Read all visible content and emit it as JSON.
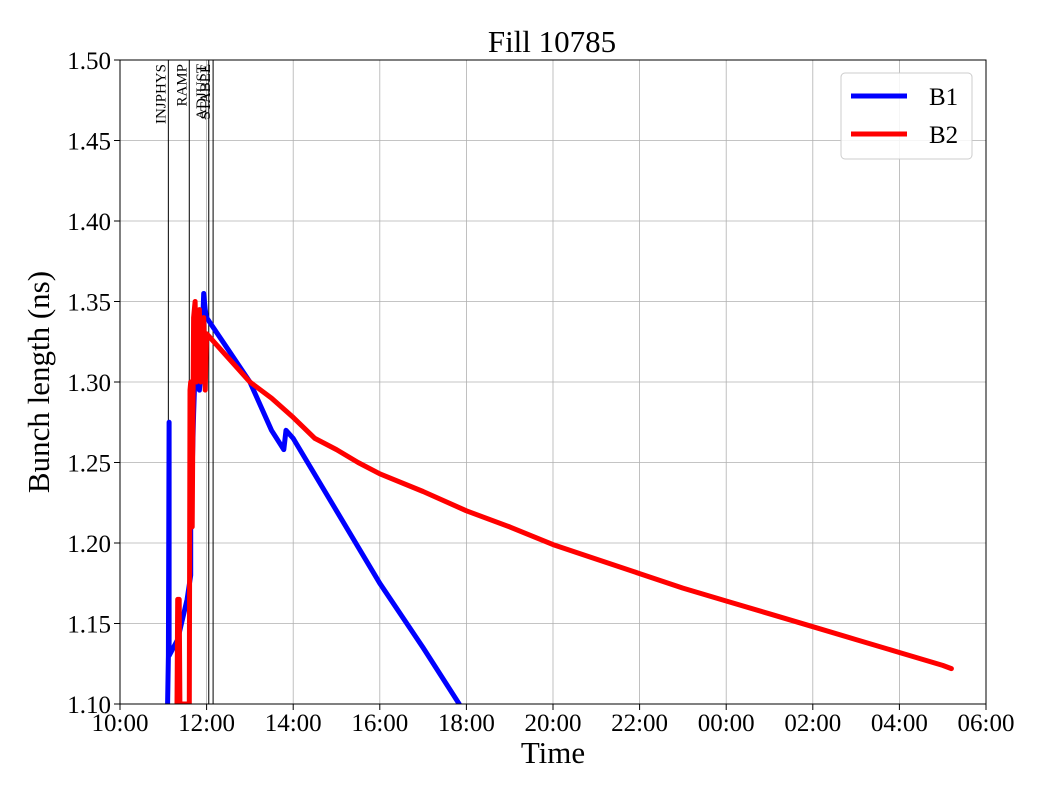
{
  "chart_data": {
    "type": "line",
    "title": "Fill 10785",
    "xlabel": "Time",
    "ylabel": "Bunch length (ns)",
    "x_ticks": [
      "10:00",
      "12:00",
      "14:00",
      "16:00",
      "18:00",
      "20:00",
      "22:00",
      "00:00",
      "02:00",
      "04:00",
      "06:00"
    ],
    "y_ticks": [
      "1.10",
      "1.15",
      "1.20",
      "1.25",
      "1.30",
      "1.35",
      "1.40",
      "1.45",
      "1.50"
    ],
    "xlim": [
      "10:00",
      "06:00 (+1 day)"
    ],
    "ylim": [
      1.1,
      1.5
    ],
    "grid": true,
    "legend_position": "top-right",
    "phases": [
      {
        "label": "INJPHYS",
        "time": "11:07"
      },
      {
        "label": "RAMP",
        "time": "11:36"
      },
      {
        "label": "ADJUST",
        "time": "12:03"
      },
      {
        "label": "STABLE",
        "time": "12:09"
      }
    ],
    "series": [
      {
        "name": "B1",
        "color": "#0000ff",
        "points": [
          [
            "11:06",
            1.1
          ],
          [
            "11:07",
            1.13
          ],
          [
            "11:08",
            1.275
          ],
          [
            "11:08",
            1.13
          ],
          [
            "11:20",
            1.14
          ],
          [
            "11:33",
            1.165
          ],
          [
            "11:38",
            1.18
          ],
          [
            "11:38",
            1.21
          ],
          [
            "11:42",
            1.28
          ],
          [
            "11:45",
            1.32
          ],
          [
            "11:48",
            1.31
          ],
          [
            "11:50",
            1.295
          ],
          [
            "11:52",
            1.305
          ],
          [
            "11:54",
            1.33
          ],
          [
            "11:56",
            1.355
          ],
          [
            "11:58",
            1.345
          ],
          [
            "12:00",
            1.34
          ],
          [
            "12:30",
            1.32
          ],
          [
            "13:00",
            1.3
          ],
          [
            "13:30",
            1.27
          ],
          [
            "13:47",
            1.258
          ],
          [
            "13:50",
            1.27
          ],
          [
            "14:00",
            1.265
          ],
          [
            "15:00",
            1.22
          ],
          [
            "16:00",
            1.175
          ],
          [
            "17:00",
            1.135
          ],
          [
            "17:50",
            1.1
          ]
        ]
      },
      {
        "name": "B2",
        "color": "#ff0000",
        "points": [
          [
            "11:19",
            1.1
          ],
          [
            "11:20",
            1.165
          ],
          [
            "11:22",
            1.165
          ],
          [
            "11:23",
            1.1
          ],
          [
            "11:36",
            1.1
          ],
          [
            "11:37",
            1.295
          ],
          [
            "11:38",
            1.3
          ],
          [
            "11:40",
            1.21
          ],
          [
            "11:42",
            1.34
          ],
          [
            "11:44",
            1.35
          ],
          [
            "11:46",
            1.3
          ],
          [
            "11:48",
            1.34
          ],
          [
            "11:50",
            1.345
          ],
          [
            "11:52",
            1.3
          ],
          [
            "11:54",
            1.33
          ],
          [
            "11:56",
            1.34
          ],
          [
            "11:58",
            1.295
          ],
          [
            "12:00",
            1.33
          ],
          [
            "12:20",
            1.32
          ],
          [
            "12:40",
            1.31
          ],
          [
            "13:00",
            1.3
          ],
          [
            "13:30",
            1.29
          ],
          [
            "14:00",
            1.278
          ],
          [
            "14:30",
            1.265
          ],
          [
            "15:00",
            1.258
          ],
          [
            "15:30",
            1.25
          ],
          [
            "16:00",
            1.243
          ],
          [
            "17:00",
            1.232
          ],
          [
            "18:00",
            1.22
          ],
          [
            "19:00",
            1.21
          ],
          [
            "20:00",
            1.199
          ],
          [
            "21:00",
            1.19
          ],
          [
            "22:00",
            1.181
          ],
          [
            "23:00",
            1.172
          ],
          [
            "00:00",
            1.164
          ],
          [
            "01:00",
            1.156
          ],
          [
            "02:00",
            1.148
          ],
          [
            "03:00",
            1.14
          ],
          [
            "04:00",
            1.132
          ],
          [
            "05:00",
            1.124
          ],
          [
            "05:12",
            1.122
          ]
        ]
      }
    ]
  }
}
